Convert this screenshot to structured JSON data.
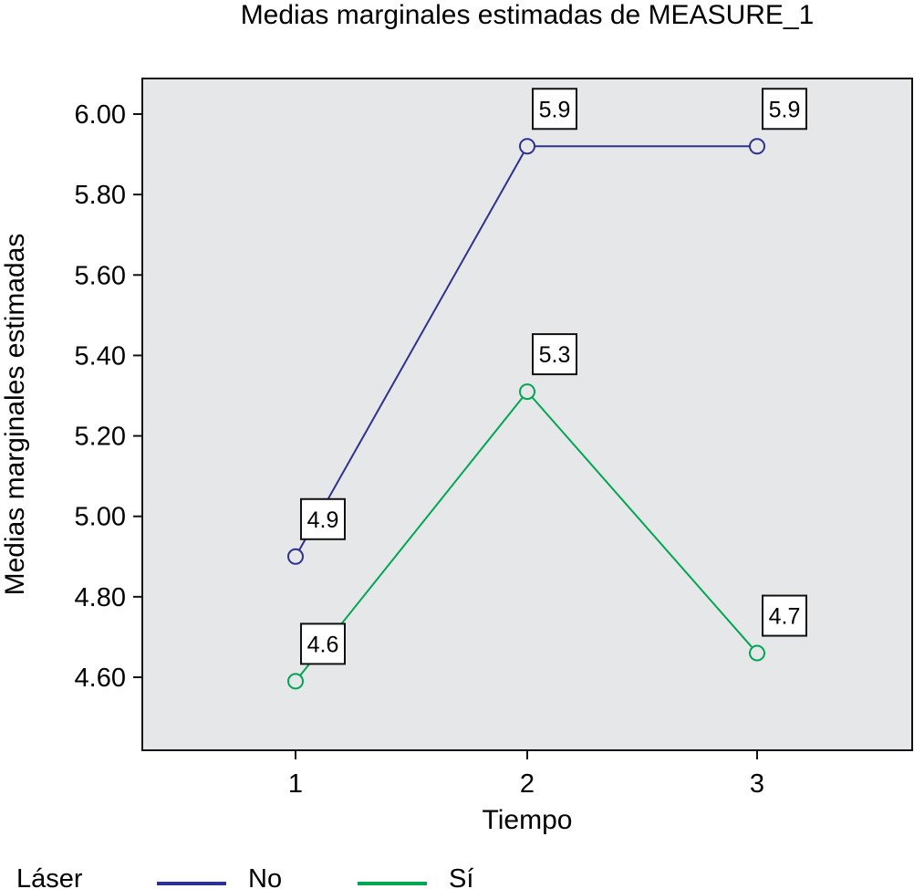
{
  "chart_data": {
    "type": "line",
    "title": "Medias marginales estimadas de MEASURE_1",
    "xlabel": "Tiempo",
    "ylabel": "Medias marginales estimadas",
    "categories": [
      "1",
      "2",
      "3"
    ],
    "yticks": [
      "4.60",
      "4.80",
      "5.00",
      "5.20",
      "5.40",
      "5.60",
      "5.80",
      "6.00"
    ],
    "ylim": [
      4.42,
      6.08
    ],
    "grid": false,
    "legend_title": "Láser",
    "legend_position": "bottom",
    "series": [
      {
        "name": "No",
        "color": "#2e3192",
        "values": [
          4.9,
          5.92,
          5.92
        ],
        "labels": [
          "4.9",
          "5.9",
          "5.9"
        ]
      },
      {
        "name": "Sí",
        "color": "#00a651",
        "values": [
          4.59,
          5.31,
          4.66
        ],
        "labels": [
          "4.6",
          "5.3",
          "4.7"
        ]
      }
    ],
    "plot_background": "#e6e7e9"
  }
}
